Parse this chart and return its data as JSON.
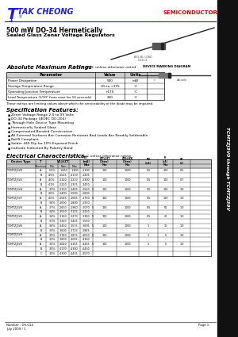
{
  "company": "TAK CHEONG",
  "side_text": "TCMTZJ3V0 through TCMTZJ39V",
  "title_line1": "500 mW DO-34 Hermetically",
  "title_line2": "Sealed Glass Zener Voltage Regulators",
  "abs_max_title": "Absolute Maximum Ratings",
  "abs_max_note": "  T⁁ = 25°C unless otherwise noted",
  "abs_max_headers": [
    "Parameter",
    "Value",
    "Units"
  ],
  "abs_max_rows": [
    [
      "Power Dissipation",
      "500",
      "mW"
    ],
    [
      "Storage Temperature Range",
      "-65 to +175",
      "°C"
    ],
    [
      "Operating Junction Temperature",
      "+175",
      "°C"
    ],
    [
      "Lead Temperature (1/10\" from case for 10 seconds)",
      "230",
      "°C"
    ]
  ],
  "abs_max_note2": "These ratings are limiting values above which the serviceability of the diode may be impaired.",
  "spec_title": "Specification Features:",
  "spec_bullets": [
    "Zener Voltage Range 2.0 to 39 Volts",
    "DO-34 Package (JEDEC DO-204)",
    "Through Hole Device Type Mounting",
    "Hermetically Sealed Glass",
    "Compensated Bonded Construction",
    "All External Surfaces Are Corrosion Resistant And Leads Are Readily Solderable",
    "RoHS Compliant",
    "Solder 440 Dip for 10% Exposed Finish",
    "Cathode Indicated By Polarity Band"
  ],
  "elec_char_title": "Electrical Characteristics",
  "elec_char_note": " T⁁ = 25°C unless otherwise noted",
  "elec_rows": [
    [
      "TCMTZJ3V0",
      "A",
      "5.5%",
      "1.660",
      "1.900",
      "2.100",
      "5",
      "100",
      "1000",
      "0.5",
      "120",
      "0.5"
    ],
    [
      "",
      "B",
      "4.5%",
      "2.025",
      "2.110",
      "2.205",
      "",
      "",
      "",
      "",
      "",
      ""
    ],
    [
      "TCMTZJ3V2",
      "A",
      "4.0%",
      "2.120",
      "2.210",
      "2.300",
      "5",
      "100",
      "1000",
      "0.5",
      "100",
      "0.7"
    ],
    [
      "",
      "B",
      "4.1%",
      "2.220",
      "2.315",
      "2.410",
      "",
      "",
      "",
      "",
      "",
      ""
    ],
    [
      "TCMTZJ3V4",
      "A",
      "3.9%",
      "2.330",
      "2.425",
      "2.520",
      "5",
      "100",
      "1000",
      "0.5",
      "100",
      "1.0"
    ],
    [
      "",
      "B",
      "4.0%",
      "2.400",
      "2.500",
      "2.600",
      "",
      "",
      "",
      "",
      "",
      ""
    ],
    [
      "TCMTZJ3V7",
      "A",
      "4.0%",
      "2.545",
      "2.645",
      "2.750",
      "5",
      "110",
      "1000",
      "0.5",
      "100",
      "1.0"
    ],
    [
      "",
      "B",
      "3.6%",
      "2.690",
      "2.800",
      "2.910",
      "",
      "",
      "",
      "",
      "",
      ""
    ],
    [
      "TCMTZJ3V9",
      "A",
      "3.7%",
      "2.650",
      "2.960",
      "3.070",
      "5",
      "120",
      "1000",
      "0.5",
      "50",
      "1.0"
    ],
    [
      "",
      "B",
      "3.4%",
      "3.010",
      "3.115",
      "3.220",
      "",
      "",
      "",
      "",
      "",
      ""
    ],
    [
      "TCMTZJ3V3",
      "A",
      "3.4%",
      "3.160",
      "3.270",
      "3.380",
      "5",
      "120",
      "1000",
      "0.5",
      "20",
      "1.0"
    ],
    [
      "",
      "B",
      "3.1%",
      "3.320",
      "3.425",
      "3.530",
      "",
      "",
      "",
      "",
      "",
      ""
    ],
    [
      "TCMTZJ3V6",
      "A",
      "3.6%",
      "3.450",
      "3.575",
      "3.695",
      "5",
      "100",
      "1000",
      "1",
      "10",
      "1.0"
    ],
    [
      "",
      "B",
      "3.9%",
      "3.600",
      "3.723",
      "3.845",
      "",
      "",
      "",
      "",
      "",
      ""
    ],
    [
      "TCMTZJ3V9",
      "A",
      "3.5%",
      "3.740",
      "3.875",
      "4.010",
      "5",
      "100",
      "1000",
      "1",
      "5",
      "1.0"
    ],
    [
      "",
      "B",
      "3.3%",
      "3.899",
      "4.025",
      "4.160",
      "",
      "",
      "",
      "",
      "",
      ""
    ],
    [
      "TCMTZJ4V0",
      "A",
      "3.0%",
      "4.040",
      "4.165",
      "4.265",
      "5",
      "100",
      "1000",
      "1",
      "5",
      "1.0"
    ],
    [
      "",
      "B",
      "3.0%",
      "4.170",
      "4.300",
      "4.430",
      "",
      "",
      "",
      "",
      "",
      ""
    ],
    [
      "",
      "C",
      "3.0%",
      "4.300",
      "4.435",
      "4.570",
      "",
      "",
      "",
      "",
      "",
      ""
    ]
  ],
  "footer_number": "Number : DS-014",
  "footer_date": "July 2009 / C",
  "footer_page": "Page 1",
  "bg_color": "#ffffff",
  "blue": "#2020cc",
  "red": "#cc0000",
  "black": "#000000",
  "sidebar_color": "#111111",
  "gray_hdr": "#cccccc"
}
